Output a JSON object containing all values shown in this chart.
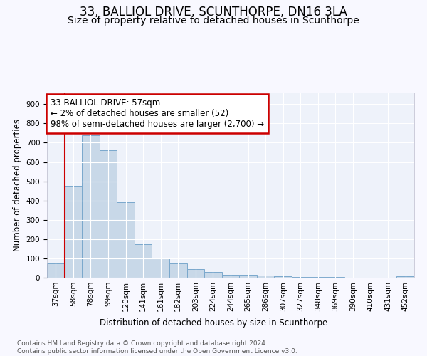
{
  "title": "33, BALLIOL DRIVE, SCUNTHORPE, DN16 3LA",
  "subtitle": "Size of property relative to detached houses in Scunthorpe",
  "xlabel": "Distribution of detached houses by size in Scunthorpe",
  "ylabel": "Number of detached properties",
  "categories": [
    "37sqm",
    "58sqm",
    "78sqm",
    "99sqm",
    "120sqm",
    "141sqm",
    "161sqm",
    "182sqm",
    "203sqm",
    "224sqm",
    "244sqm",
    "265sqm",
    "286sqm",
    "307sqm",
    "327sqm",
    "348sqm",
    "369sqm",
    "390sqm",
    "410sqm",
    "431sqm",
    "452sqm"
  ],
  "values": [
    75,
    475,
    740,
    660,
    390,
    175,
    100,
    75,
    45,
    30,
    15,
    13,
    10,
    7,
    4,
    3,
    2,
    1,
    1,
    0,
    8
  ],
  "bar_color": "#c8d8e8",
  "bar_edge_color": "#7aa8cc",
  "background_color": "#eef2fa",
  "grid_color": "#ffffff",
  "annotation_box_text": "33 BALLIOL DRIVE: 57sqm\n← 2% of detached houses are smaller (52)\n98% of semi-detached houses are larger (2,700) →",
  "annotation_box_color": "#cc0000",
  "ylim": [
    0,
    960
  ],
  "yticks": [
    0,
    100,
    200,
    300,
    400,
    500,
    600,
    700,
    800,
    900
  ],
  "footer_text": "Contains HM Land Registry data © Crown copyright and database right 2024.\nContains public sector information licensed under the Open Government Licence v3.0.",
  "title_fontsize": 12,
  "subtitle_fontsize": 10,
  "xlabel_fontsize": 8.5,
  "ylabel_fontsize": 8.5,
  "tick_fontsize": 7.5,
  "annotation_fontsize": 8.5,
  "footer_fontsize": 6.5
}
